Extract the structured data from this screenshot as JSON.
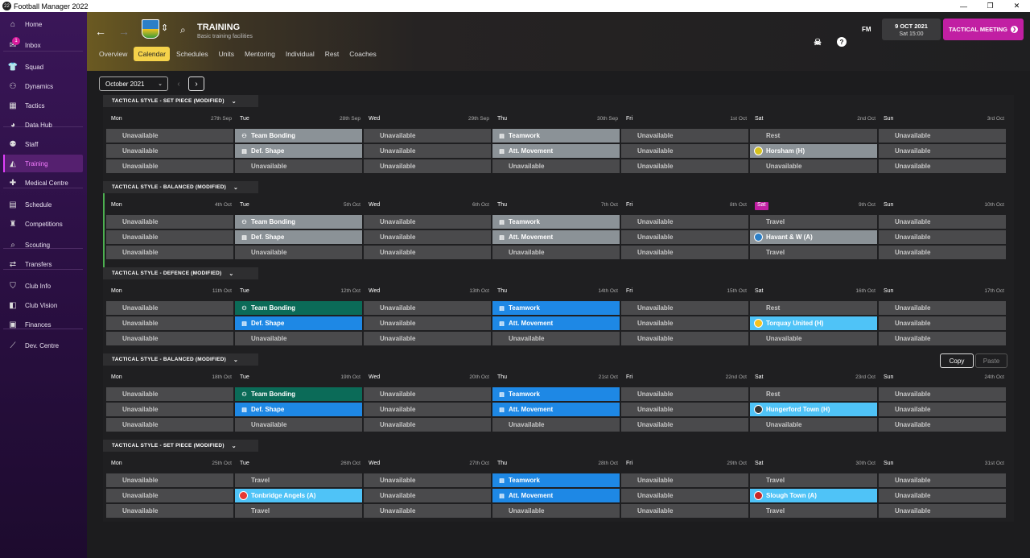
{
  "window": {
    "title": "Football Manager 2022",
    "logo": "22",
    "min": "—",
    "max": "❐",
    "close": "✕"
  },
  "sidebar": {
    "items": [
      {
        "label": "Home",
        "icon": "house-icon",
        "glyph": "⌂"
      },
      {
        "label": "Inbox",
        "icon": "inbox-icon",
        "glyph": "✉",
        "badge": "1"
      },
      {
        "label": "Squad",
        "icon": "shirt-icon",
        "glyph": "👕"
      },
      {
        "label": "Dynamics",
        "icon": "dynamics-icon",
        "glyph": "⚇"
      },
      {
        "label": "Tactics",
        "icon": "tactics-icon",
        "glyph": "▦"
      },
      {
        "label": "Data Hub",
        "icon": "data-hub-icon",
        "glyph": "◕"
      },
      {
        "label": "Staff",
        "icon": "staff-icon",
        "glyph": "⚉"
      },
      {
        "label": "Training",
        "icon": "training-icon",
        "glyph": "◭"
      },
      {
        "label": "Medical Centre",
        "icon": "medical-icon",
        "glyph": "✚"
      },
      {
        "label": "Schedule",
        "icon": "calendar-icon",
        "glyph": "▤"
      },
      {
        "label": "Competitions",
        "icon": "trophy-icon",
        "glyph": "♜"
      },
      {
        "label": "Scouting",
        "icon": "scouting-icon",
        "glyph": "⌕"
      },
      {
        "label": "Transfers",
        "icon": "transfers-icon",
        "glyph": "⇄"
      },
      {
        "label": "Club Info",
        "icon": "shield-icon",
        "glyph": "⛉"
      },
      {
        "label": "Club Vision",
        "icon": "vision-icon",
        "glyph": "◧"
      },
      {
        "label": "Finances",
        "icon": "finances-icon",
        "glyph": "▣"
      },
      {
        "label": "Dev. Centre",
        "icon": "dev-centre-icon",
        "glyph": "⟋"
      }
    ]
  },
  "header": {
    "title": "TRAINING",
    "subtitle": "Basic training facilities",
    "date": "9 OCT 2021",
    "time": "Sat 15:00",
    "tactical_meeting": "TACTICAL MEETING",
    "fm": "FM",
    "help": "?",
    "back": "←",
    "forward": "→",
    "updown": "⇕",
    "search": "⌕",
    "shield": "☠",
    "tactical_arrow": "❯"
  },
  "tabs": [
    "Overview",
    "Calendar",
    "Schedules",
    "Units",
    "Mentoring",
    "Individual",
    "Rest",
    "Coaches"
  ],
  "calendar": {
    "month": "October 2021",
    "chev": "⌄",
    "prev": "‹",
    "next": "›",
    "copy": "Copy",
    "paste": "Paste"
  },
  "weeks": [
    {
      "style": "TACTICAL STYLE - SET PIECE (MODIFIED)",
      "days": [
        {
          "name": "Mon",
          "date": "27th Sep",
          "slots": [
            {
              "t": "Unavailable",
              "c": ""
            },
            {
              "t": "Unavailable",
              "c": ""
            },
            {
              "t": "Unavailable",
              "c": ""
            }
          ]
        },
        {
          "name": "Tue",
          "date": "28th Sep",
          "slots": [
            {
              "t": "Team Bonding",
              "c": "gray",
              "i": "⚇"
            },
            {
              "t": "Def. Shape",
              "c": "gray",
              "i": "▤"
            },
            {
              "t": "Unavailable",
              "c": ""
            }
          ]
        },
        {
          "name": "Wed",
          "date": "29th Sep",
          "slots": [
            {
              "t": "Unavailable",
              "c": ""
            },
            {
              "t": "Unavailable",
              "c": ""
            },
            {
              "t": "Unavailable",
              "c": ""
            }
          ]
        },
        {
          "name": "Thu",
          "date": "30th Sep",
          "slots": [
            {
              "t": "Teamwork",
              "c": "gray",
              "i": "▤"
            },
            {
              "t": "Att. Movement",
              "c": "gray",
              "i": "▤"
            },
            {
              "t": "Unavailable",
              "c": ""
            }
          ]
        },
        {
          "name": "Fri",
          "date": "1st Oct",
          "slots": [
            {
              "t": "Unavailable",
              "c": ""
            },
            {
              "t": "Unavailable",
              "c": ""
            },
            {
              "t": "Unavailable",
              "c": ""
            }
          ]
        },
        {
          "name": "Sat",
          "date": "2nd Oct",
          "slots": [
            {
              "t": "Rest",
              "c": ""
            },
            {
              "t": "Horsham (H)",
              "c": "match-gray",
              "crest": "#d6c21f"
            },
            {
              "t": "Unavailable",
              "c": ""
            }
          ]
        },
        {
          "name": "Sun",
          "date": "3rd Oct",
          "slots": [
            {
              "t": "Unavailable",
              "c": ""
            },
            {
              "t": "Unavailable",
              "c": ""
            },
            {
              "t": "Unavailable",
              "c": ""
            }
          ]
        }
      ]
    },
    {
      "style": "TACTICAL STYLE - BALANCED (MODIFIED)",
      "current": true,
      "days": [
        {
          "name": "Mon",
          "date": "4th Oct",
          "slots": [
            {
              "t": "Unavailable",
              "c": ""
            },
            {
              "t": "Unavailable",
              "c": ""
            },
            {
              "t": "Unavailable",
              "c": ""
            }
          ]
        },
        {
          "name": "Tue",
          "date": "5th Oct",
          "slots": [
            {
              "t": "Team Bonding",
              "c": "gray",
              "i": "⚇"
            },
            {
              "t": "Def. Shape",
              "c": "gray",
              "i": "▤"
            },
            {
              "t": "Unavailable",
              "c": ""
            }
          ]
        },
        {
          "name": "Wed",
          "date": "6th Oct",
          "slots": [
            {
              "t": "Unavailable",
              "c": ""
            },
            {
              "t": "Unavailable",
              "c": ""
            },
            {
              "t": "Unavailable",
              "c": ""
            }
          ]
        },
        {
          "name": "Thu",
          "date": "7th Oct",
          "slots": [
            {
              "t": "Teamwork",
              "c": "gray",
              "i": "▤"
            },
            {
              "t": "Att. Movement",
              "c": "gray",
              "i": "▤"
            },
            {
              "t": "Unavailable",
              "c": ""
            }
          ]
        },
        {
          "name": "Fri",
          "date": "8th Oct",
          "slots": [
            {
              "t": "Unavailable",
              "c": ""
            },
            {
              "t": "Unavailable",
              "c": ""
            },
            {
              "t": "Unavailable",
              "c": ""
            }
          ]
        },
        {
          "name": "Sat",
          "date": "9th Oct",
          "today": true,
          "slots": [
            {
              "t": "Travel",
              "c": ""
            },
            {
              "t": "Havant & W (A)",
              "c": "match-gray",
              "crest": "#2c7fc7"
            },
            {
              "t": "Travel",
              "c": ""
            }
          ]
        },
        {
          "name": "Sun",
          "date": "10th Oct",
          "slots": [
            {
              "t": "Unavailable",
              "c": ""
            },
            {
              "t": "Unavailable",
              "c": ""
            },
            {
              "t": "Unavailable",
              "c": ""
            }
          ]
        }
      ]
    },
    {
      "style": "TACTICAL STYLE - DEFENCE (MODIFIED)",
      "days": [
        {
          "name": "Mon",
          "date": "11th Oct",
          "slots": [
            {
              "t": "Unavailable",
              "c": ""
            },
            {
              "t": "Unavailable",
              "c": ""
            },
            {
              "t": "Unavailable",
              "c": ""
            }
          ]
        },
        {
          "name": "Tue",
          "date": "12th Oct",
          "slots": [
            {
              "t": "Team Bonding",
              "c": "teal",
              "i": "⚇"
            },
            {
              "t": "Def. Shape",
              "c": "blue",
              "i": "▤"
            },
            {
              "t": "Unavailable",
              "c": ""
            }
          ]
        },
        {
          "name": "Wed",
          "date": "13th Oct",
          "slots": [
            {
              "t": "Unavailable",
              "c": ""
            },
            {
              "t": "Unavailable",
              "c": ""
            },
            {
              "t": "Unavailable",
              "c": ""
            }
          ]
        },
        {
          "name": "Thu",
          "date": "14th Oct",
          "slots": [
            {
              "t": "Teamwork",
              "c": "blue",
              "i": "▤"
            },
            {
              "t": "Att. Movement",
              "c": "blue",
              "i": "▤"
            },
            {
              "t": "Unavailable",
              "c": ""
            }
          ]
        },
        {
          "name": "Fri",
          "date": "15th Oct",
          "slots": [
            {
              "t": "Unavailable",
              "c": ""
            },
            {
              "t": "Unavailable",
              "c": ""
            },
            {
              "t": "Unavailable",
              "c": ""
            }
          ]
        },
        {
          "name": "Sat",
          "date": "16th Oct",
          "slots": [
            {
              "t": "Rest",
              "c": ""
            },
            {
              "t": "Torquay United (H)",
              "c": "lblue",
              "crest": "#f4c21f"
            },
            {
              "t": "Unavailable",
              "c": ""
            }
          ]
        },
        {
          "name": "Sun",
          "date": "17th Oct",
          "slots": [
            {
              "t": "Unavailable",
              "c": ""
            },
            {
              "t": "Unavailable",
              "c": ""
            },
            {
              "t": "Unavailable",
              "c": ""
            }
          ]
        }
      ]
    },
    {
      "style": "TACTICAL STYLE - BALANCED (MODIFIED)",
      "days": [
        {
          "name": "Mon",
          "date": "18th Oct",
          "slots": [
            {
              "t": "Unavailable",
              "c": ""
            },
            {
              "t": "Unavailable",
              "c": ""
            },
            {
              "t": "Unavailable",
              "c": ""
            }
          ]
        },
        {
          "name": "Tue",
          "date": "19th Oct",
          "slots": [
            {
              "t": "Team Bonding",
              "c": "teal",
              "i": "⚇"
            },
            {
              "t": "Def. Shape",
              "c": "blue",
              "i": "▤"
            },
            {
              "t": "Unavailable",
              "c": ""
            }
          ]
        },
        {
          "name": "Wed",
          "date": "20th Oct",
          "slots": [
            {
              "t": "Unavailable",
              "c": ""
            },
            {
              "t": "Unavailable",
              "c": ""
            },
            {
              "t": "Unavailable",
              "c": ""
            }
          ]
        },
        {
          "name": "Thu",
          "date": "21st Oct",
          "slots": [
            {
              "t": "Teamwork",
              "c": "blue",
              "i": "▤"
            },
            {
              "t": "Att. Movement",
              "c": "blue",
              "i": "▤"
            },
            {
              "t": "Unavailable",
              "c": ""
            }
          ]
        },
        {
          "name": "Fri",
          "date": "22nd Oct",
          "slots": [
            {
              "t": "Unavailable",
              "c": ""
            },
            {
              "t": "Unavailable",
              "c": ""
            },
            {
              "t": "Unavailable",
              "c": ""
            }
          ]
        },
        {
          "name": "Sat",
          "date": "23rd Oct",
          "slots": [
            {
              "t": "Rest",
              "c": ""
            },
            {
              "t": "Hungerford Town (H)",
              "c": "lblue",
              "crest": "#333"
            },
            {
              "t": "Unavailable",
              "c": ""
            }
          ]
        },
        {
          "name": "Sun",
          "date": "24th Oct",
          "slots": [
            {
              "t": "Unavailable",
              "c": ""
            },
            {
              "t": "Unavailable",
              "c": ""
            },
            {
              "t": "Unavailable",
              "c": ""
            }
          ]
        }
      ]
    },
    {
      "style": "TACTICAL STYLE - SET PIECE (MODIFIED)",
      "days": [
        {
          "name": "Mon",
          "date": "25th Oct",
          "slots": [
            {
              "t": "Unavailable",
              "c": ""
            },
            {
              "t": "Unavailable",
              "c": ""
            },
            {
              "t": "Unavailable",
              "c": ""
            }
          ]
        },
        {
          "name": "Tue",
          "date": "26th Oct",
          "slots": [
            {
              "t": "Travel",
              "c": ""
            },
            {
              "t": "Tonbridge Angels (A)",
              "c": "lblue",
              "crest": "#e53935"
            },
            {
              "t": "Travel",
              "c": ""
            }
          ]
        },
        {
          "name": "Wed",
          "date": "27th Oct",
          "slots": [
            {
              "t": "Unavailable",
              "c": ""
            },
            {
              "t": "Unavailable",
              "c": ""
            },
            {
              "t": "Unavailable",
              "c": ""
            }
          ]
        },
        {
          "name": "Thu",
          "date": "28th Oct",
          "slots": [
            {
              "t": "Teamwork",
              "c": "blue",
              "i": "▤"
            },
            {
              "t": "Att. Movement",
              "c": "blue",
              "i": "▤"
            },
            {
              "t": "Unavailable",
              "c": ""
            }
          ]
        },
        {
          "name": "Fri",
          "date": "29th Oct",
          "slots": [
            {
              "t": "Unavailable",
              "c": ""
            },
            {
              "t": "Unavailable",
              "c": ""
            },
            {
              "t": "Unavailable",
              "c": ""
            }
          ]
        },
        {
          "name": "Sat",
          "date": "30th Oct",
          "slots": [
            {
              "t": "Travel",
              "c": ""
            },
            {
              "t": "Slough Town (A)",
              "c": "lblue",
              "crest": "#c62828"
            },
            {
              "t": "Travel",
              "c": ""
            }
          ]
        },
        {
          "name": "Sun",
          "date": "31st Oct",
          "slots": [
            {
              "t": "Unavailable",
              "c": ""
            },
            {
              "t": "Unavailable",
              "c": ""
            },
            {
              "t": "Unavailable",
              "c": ""
            }
          ]
        }
      ]
    }
  ]
}
